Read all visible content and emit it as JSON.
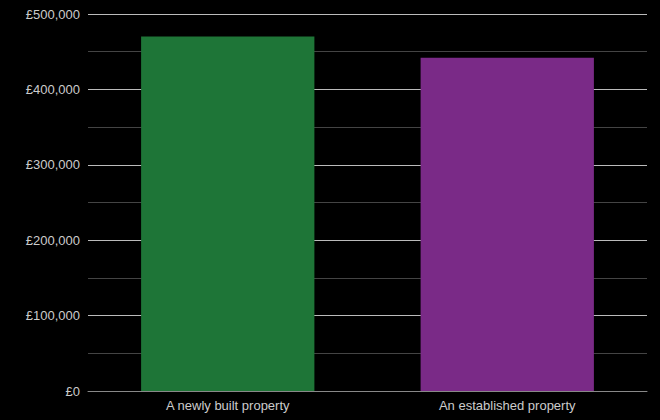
{
  "chart_data": {
    "type": "bar",
    "categories": [
      "A newly built property",
      "An established property"
    ],
    "values": [
      470000,
      442000
    ],
    "colors": [
      "#1e7537",
      "#7a2a87"
    ],
    "ylim": [
      0,
      500000
    ],
    "yticks": [
      {
        "value": 0,
        "label": "£0"
      },
      {
        "value": 100000,
        "label": "£100,000"
      },
      {
        "value": 200000,
        "label": "£200,000"
      },
      {
        "value": 300000,
        "label": "£300,000"
      },
      {
        "value": 400000,
        "label": "£400,000"
      },
      {
        "value": 500000,
        "label": "£500,000"
      }
    ],
    "grid": true
  }
}
